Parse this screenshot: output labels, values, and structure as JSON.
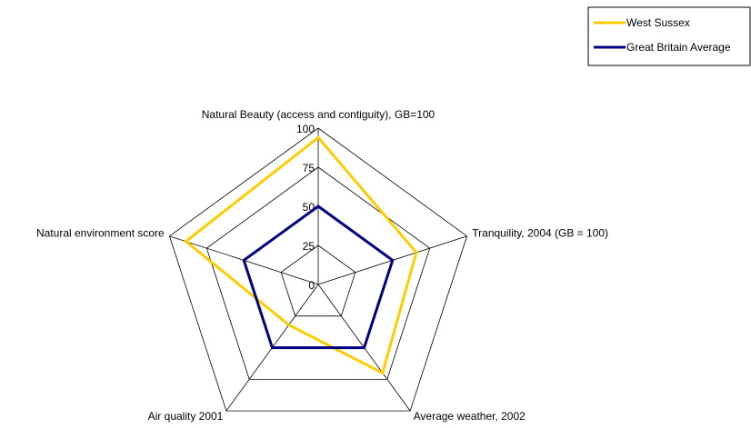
{
  "chart_data": {
    "type": "radar",
    "categories": [
      "Natural Beauty (access and contiguity), GB=100",
      "Tranquility, 2004 (GB = 100)",
      "Average weather, 2002",
      "Air quality 2001",
      "Natural environment score"
    ],
    "series": [
      {
        "name": "West Sussex",
        "color": "#ffcc00",
        "values": [
          94,
          66,
          70,
          32,
          89
        ]
      },
      {
        "name": "Great Britain Average",
        "color": "#000080",
        "values": [
          50,
          50,
          50,
          50,
          50
        ]
      }
    ],
    "ylim": [
      0,
      100
    ],
    "yticks": [
      0,
      25,
      50,
      75,
      100
    ],
    "grid": true,
    "legend": "top-right"
  }
}
